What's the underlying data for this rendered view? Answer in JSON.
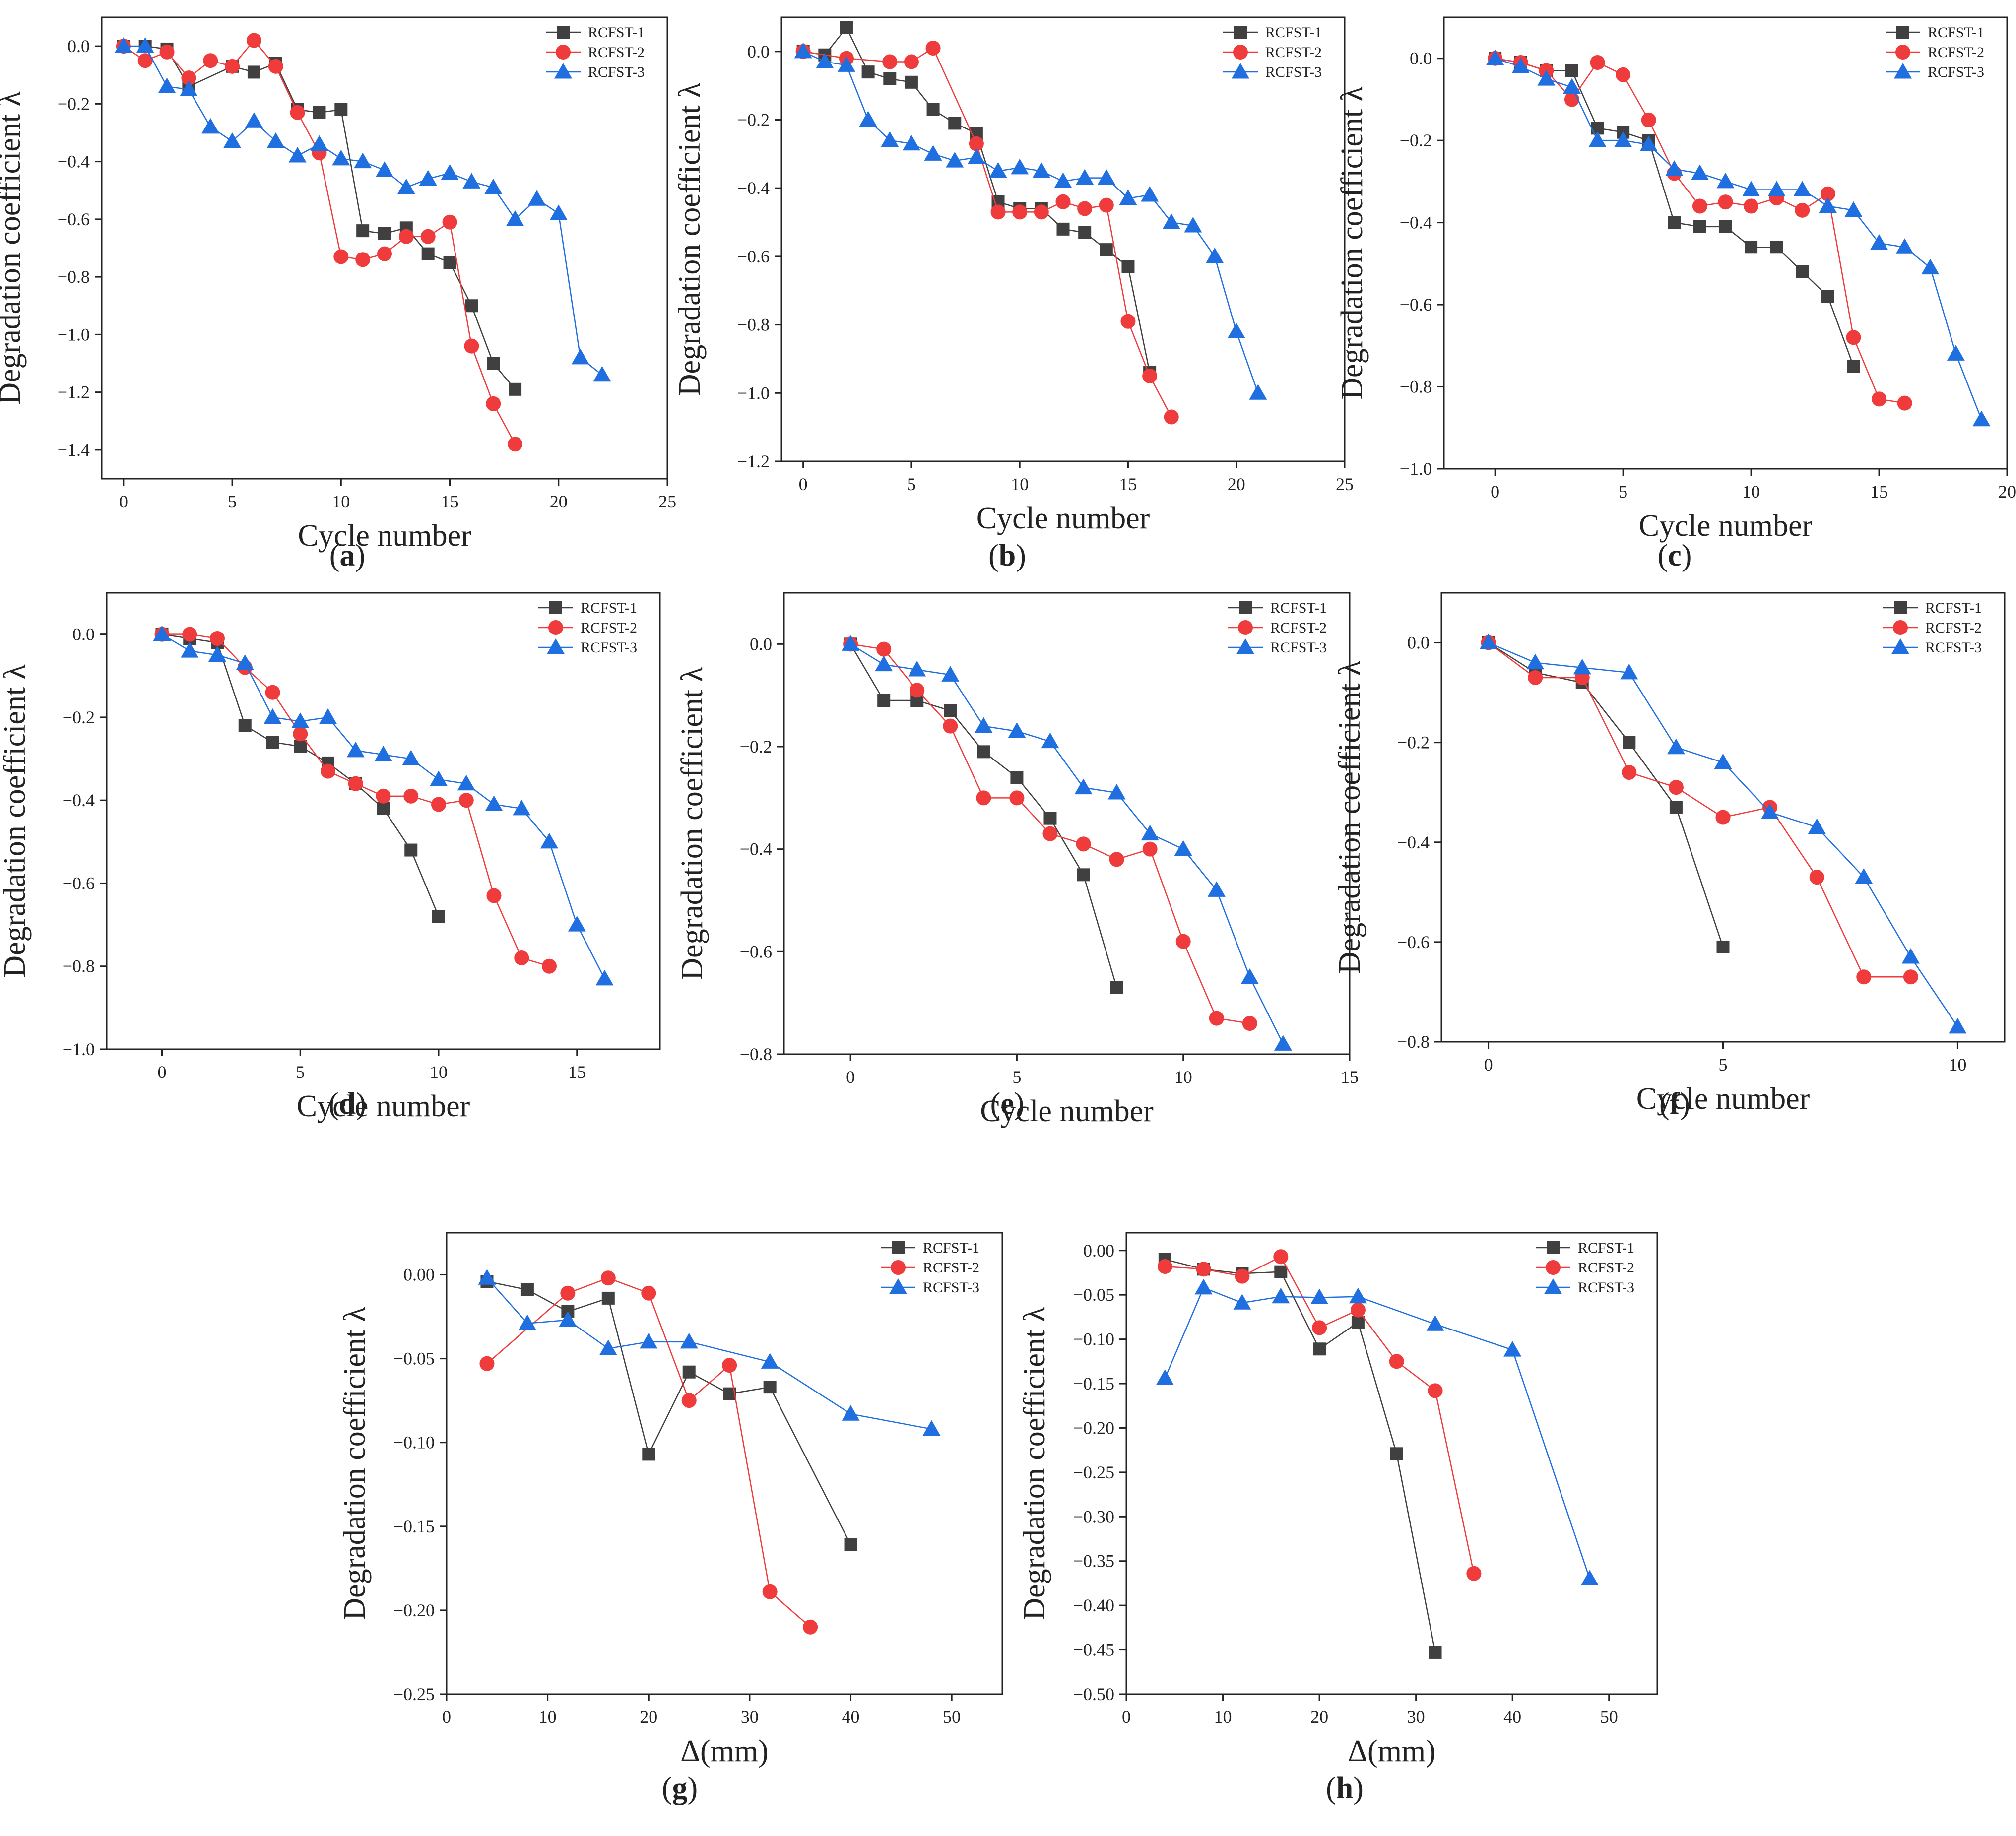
{
  "colors": {
    "RCFST-1": "#404040",
    "RCFST-2": "#ef3b3b",
    "RCFST-3": "#1f6fe0"
  },
  "chart_data": [
    {
      "panel": "(a)",
      "panel_letter": "a",
      "type": "line",
      "xlabel": "Cycle number",
      "ylabel": "Degradation coefficient  λ",
      "xlim": [
        -1,
        25
      ],
      "ylim": [
        -1.5,
        0.1
      ],
      "xticks": [
        0,
        5,
        10,
        15,
        20,
        25
      ],
      "yticks": [
        0.0,
        -0.2,
        -0.4,
        -0.6,
        -0.8,
        -1.0,
        -1.2,
        -1.4
      ],
      "ytick_labels": [
        "0.0",
        "−0.2",
        "−0.4",
        "−0.6",
        "−0.8",
        "−1.0",
        "−1.2",
        "−1.4"
      ],
      "legend": "top-right",
      "series": [
        {
          "name": "RCFST-1",
          "x": [
            0,
            1,
            2,
            3,
            5,
            6,
            7,
            8,
            9,
            10,
            11,
            12,
            13,
            14,
            15,
            16,
            17,
            18
          ],
          "y": [
            0,
            0,
            -0.01,
            -0.14,
            -0.07,
            -0.09,
            -0.06,
            -0.22,
            -0.23,
            -0.22,
            -0.64,
            -0.65,
            -0.63,
            -0.72,
            -0.75,
            -0.9,
            -1.1,
            -1.19
          ]
        },
        {
          "name": "RCFST-2",
          "x": [
            0,
            1,
            2,
            3,
            4,
            5,
            6,
            7,
            8,
            9,
            10,
            11,
            12,
            13,
            14,
            15,
            16,
            17,
            18
          ],
          "y": [
            0,
            -0.05,
            -0.02,
            -0.11,
            -0.05,
            -0.07,
            0.02,
            -0.07,
            -0.23,
            -0.37,
            -0.73,
            -0.74,
            -0.72,
            -0.66,
            -0.66,
            -0.61,
            -1.04,
            -1.24,
            -1.38
          ]
        },
        {
          "name": "RCFST-3",
          "x": [
            0,
            1,
            2,
            3,
            4,
            5,
            6,
            7,
            8,
            9,
            10,
            11,
            12,
            13,
            14,
            15,
            16,
            17,
            18,
            19,
            20,
            21,
            22
          ],
          "y": [
            0,
            0,
            -0.14,
            -0.15,
            -0.28,
            -0.33,
            -0.26,
            -0.33,
            -0.38,
            -0.34,
            -0.39,
            -0.4,
            -0.43,
            -0.49,
            -0.46,
            -0.44,
            -0.47,
            -0.49,
            -0.6,
            -0.53,
            -0.58,
            -1.08,
            -1.14
          ]
        }
      ]
    },
    {
      "panel": "(b)",
      "panel_letter": "b",
      "type": "line",
      "xlabel": "Cycle number",
      "ylabel": "Degradation coefficient  λ",
      "xlim": [
        -1,
        25
      ],
      "ylim": [
        -1.2,
        0.1
      ],
      "xticks": [
        0,
        5,
        10,
        15,
        20,
        25
      ],
      "yticks": [
        0.0,
        -0.2,
        -0.4,
        -0.6,
        -0.8,
        -1.0,
        -1.2
      ],
      "ytick_labels": [
        "0.0",
        "−0.2",
        "−0.4",
        "−0.6",
        "−0.8",
        "−1.0",
        "−1.2"
      ],
      "legend": "top-right",
      "series": [
        {
          "name": "RCFST-1",
          "x": [
            0,
            1,
            2,
            3,
            4,
            5,
            6,
            7,
            8,
            9,
            10,
            11,
            12,
            13,
            14,
            15,
            16
          ],
          "y": [
            0,
            -0.01,
            0.07,
            -0.06,
            -0.08,
            -0.09,
            -0.17,
            -0.21,
            -0.24,
            -0.44,
            -0.46,
            -0.46,
            -0.52,
            -0.53,
            -0.58,
            -0.63,
            -0.94
          ]
        },
        {
          "name": "RCFST-2",
          "x": [
            0,
            2,
            4,
            5,
            6,
            8,
            9,
            10,
            11,
            12,
            13,
            14,
            15,
            16,
            17
          ],
          "y": [
            0,
            -0.02,
            -0.03,
            -0.03,
            0.01,
            -0.27,
            -0.47,
            -0.47,
            -0.47,
            -0.44,
            -0.46,
            -0.45,
            -0.79,
            -0.95,
            -1.07
          ]
        },
        {
          "name": "RCFST-3",
          "x": [
            0,
            1,
            2,
            3,
            4,
            5,
            6,
            7,
            8,
            9,
            10,
            11,
            12,
            13,
            14,
            15,
            16,
            17,
            18,
            19,
            20,
            21
          ],
          "y": [
            0,
            -0.03,
            -0.04,
            -0.2,
            -0.26,
            -0.27,
            -0.3,
            -0.32,
            -0.31,
            -0.35,
            -0.34,
            -0.35,
            -0.38,
            -0.37,
            -0.37,
            -0.43,
            -0.42,
            -0.5,
            -0.51,
            -0.6,
            -0.82,
            -1.0
          ]
        }
      ]
    },
    {
      "panel": "(c)",
      "panel_letter": "c",
      "type": "line",
      "xlabel": "Cycle number",
      "ylabel": "Degradation coefficient  λ",
      "xlim": [
        -2,
        20
      ],
      "ylim": [
        -1.0,
        0.1
      ],
      "xticks": [
        0,
        5,
        10,
        15,
        20
      ],
      "yticks": [
        0.0,
        -0.2,
        -0.4,
        -0.6,
        -0.8,
        -1.0
      ],
      "ytick_labels": [
        "0.0",
        "−0.2",
        "−0.4",
        "−0.6",
        "−0.8",
        "−1.0"
      ],
      "legend": "top-right",
      "series": [
        {
          "name": "RCFST-1",
          "x": [
            0,
            1,
            2,
            3,
            4,
            5,
            6,
            7,
            8,
            9,
            10,
            11,
            12,
            13,
            14
          ],
          "y": [
            0,
            -0.01,
            -0.03,
            -0.03,
            -0.17,
            -0.18,
            -0.2,
            -0.4,
            -0.41,
            -0.41,
            -0.46,
            -0.46,
            -0.52,
            -0.58,
            -0.75
          ]
        },
        {
          "name": "RCFST-2",
          "x": [
            0,
            1,
            2,
            3,
            4,
            5,
            6,
            7,
            8,
            9,
            10,
            11,
            12,
            13,
            14,
            15,
            16
          ],
          "y": [
            0,
            -0.01,
            -0.03,
            -0.1,
            -0.01,
            -0.04,
            -0.15,
            -0.28,
            -0.36,
            -0.35,
            -0.36,
            -0.34,
            -0.37,
            -0.33,
            -0.68,
            -0.83,
            -0.84
          ]
        },
        {
          "name": "RCFST-3",
          "x": [
            0,
            1,
            2,
            3,
            4,
            5,
            6,
            7,
            8,
            9,
            10,
            11,
            12,
            13,
            14,
            15,
            16,
            17,
            18,
            19
          ],
          "y": [
            0,
            -0.02,
            -0.05,
            -0.07,
            -0.2,
            -0.2,
            -0.21,
            -0.27,
            -0.28,
            -0.3,
            -0.32,
            -0.32,
            -0.32,
            -0.36,
            -0.37,
            -0.45,
            -0.46,
            -0.51,
            -0.72,
            -0.88
          ]
        }
      ]
    },
    {
      "panel": "(d)",
      "panel_letter": "d",
      "type": "line",
      "xlabel": "Cycle number",
      "ylabel": "Degradation coefficient  λ",
      "xlim": [
        -2,
        18
      ],
      "ylim": [
        -1.0,
        0.1
      ],
      "xticks": [
        0,
        5,
        10,
        15
      ],
      "yticks": [
        0.0,
        -0.2,
        -0.4,
        -0.6,
        -0.8,
        -1.0
      ],
      "ytick_labels": [
        "0.0",
        "−0.2",
        "−0.4",
        "−0.6",
        "−0.8",
        "−1.0"
      ],
      "legend": "top-right",
      "series": [
        {
          "name": "RCFST-1",
          "x": [
            0,
            1,
            2,
            3,
            4,
            5,
            6,
            7,
            8,
            9,
            10
          ],
          "y": [
            0,
            -0.01,
            -0.02,
            -0.22,
            -0.26,
            -0.27,
            -0.31,
            -0.36,
            -0.42,
            -0.52,
            -0.68
          ]
        },
        {
          "name": "RCFST-2",
          "x": [
            0,
            1,
            2,
            3,
            4,
            5,
            6,
            7,
            8,
            9,
            10,
            11,
            12,
            13,
            14
          ],
          "y": [
            0,
            0,
            -0.01,
            -0.08,
            -0.14,
            -0.24,
            -0.33,
            -0.36,
            -0.39,
            -0.39,
            -0.41,
            -0.4,
            -0.63,
            -0.78,
            -0.8
          ]
        },
        {
          "name": "RCFST-3",
          "x": [
            0,
            1,
            2,
            3,
            4,
            5,
            6,
            7,
            8,
            9,
            10,
            11,
            12,
            13,
            14,
            15,
            16
          ],
          "y": [
            0,
            -0.04,
            -0.05,
            -0.07,
            -0.2,
            -0.21,
            -0.2,
            -0.28,
            -0.29,
            -0.3,
            -0.35,
            -0.36,
            -0.41,
            -0.42,
            -0.5,
            -0.7,
            -0.83
          ]
        }
      ]
    },
    {
      "panel": "(e)",
      "panel_letter": "e",
      "type": "line",
      "xlabel": "Cycle number",
      "ylabel": "Degradation coefficient  λ",
      "xlim": [
        -2,
        15
      ],
      "ylim": [
        -0.8,
        0.1
      ],
      "xticks": [
        0,
        5,
        10,
        15
      ],
      "yticks": [
        0.0,
        -0.2,
        -0.4,
        -0.6,
        -0.8
      ],
      "ytick_labels": [
        "0.0",
        "−0.2",
        "−0.4",
        "−0.6",
        "−0.8"
      ],
      "legend": "top-right",
      "series": [
        {
          "name": "RCFST-1",
          "x": [
            0,
            1,
            2,
            3,
            4,
            5,
            6,
            7,
            8
          ],
          "y": [
            0,
            -0.11,
            -0.11,
            -0.13,
            -0.21,
            -0.26,
            -0.34,
            -0.45,
            -0.67
          ]
        },
        {
          "name": "RCFST-2",
          "x": [
            0,
            1,
            2,
            3,
            4,
            5,
            6,
            7,
            8,
            9,
            10,
            11,
            12
          ],
          "y": [
            0,
            -0.01,
            -0.09,
            -0.16,
            -0.3,
            -0.3,
            -0.37,
            -0.39,
            -0.42,
            -0.4,
            -0.58,
            -0.73,
            -0.74
          ]
        },
        {
          "name": "RCFST-3",
          "x": [
            0,
            1,
            2,
            3,
            4,
            5,
            6,
            7,
            8,
            9,
            10,
            11,
            12,
            13
          ],
          "y": [
            0,
            -0.04,
            -0.05,
            -0.06,
            -0.16,
            -0.17,
            -0.19,
            -0.28,
            -0.29,
            -0.37,
            -0.4,
            -0.48,
            -0.65,
            -0.78
          ]
        }
      ]
    },
    {
      "panel": "(f)",
      "panel_letter": "f",
      "type": "line",
      "xlabel": "Cycle number",
      "ylabel": "Degradation coefficient  λ",
      "xlim": [
        -1,
        11
      ],
      "ylim": [
        -0.8,
        0.1
      ],
      "xticks": [
        0,
        5,
        10
      ],
      "yticks": [
        0.0,
        -0.2,
        -0.4,
        -0.6,
        -0.8
      ],
      "ytick_labels": [
        "0.0",
        "−0.2",
        "−0.4",
        "−0.6",
        "−0.8"
      ],
      "legend": "top-right",
      "series": [
        {
          "name": "RCFST-1",
          "x": [
            0,
            1,
            2,
            3,
            4,
            5
          ],
          "y": [
            0,
            -0.06,
            -0.08,
            -0.2,
            -0.33,
            -0.61
          ]
        },
        {
          "name": "RCFST-2",
          "x": [
            0,
            1,
            2,
            3,
            4,
            5,
            6,
            7,
            8,
            9
          ],
          "y": [
            0,
            -0.07,
            -0.07,
            -0.26,
            -0.29,
            -0.35,
            -0.33,
            -0.47,
            -0.67,
            -0.67
          ]
        },
        {
          "name": "RCFST-3",
          "x": [
            0,
            1,
            2,
            3,
            4,
            5,
            6,
            7,
            8,
            9,
            10
          ],
          "y": [
            0,
            -0.04,
            -0.05,
            -0.06,
            -0.21,
            -0.24,
            -0.34,
            -0.37,
            -0.47,
            -0.63,
            -0.77
          ]
        }
      ]
    },
    {
      "panel": "(g)",
      "panel_letter": "g",
      "type": "line",
      "xlabel": "Δ(mm)",
      "ylabel": "Degradation coefficient  λ",
      "xlim": [
        0,
        55
      ],
      "ylim": [
        -0.25,
        0.025
      ],
      "xticks": [
        0,
        10,
        20,
        30,
        40,
        50
      ],
      "yticks": [
        0.0,
        -0.05,
        -0.1,
        -0.15,
        -0.2,
        -0.25
      ],
      "ytick_labels": [
        "0.00",
        "−0.05",
        "−0.10",
        "−0.15",
        "−0.20",
        "−0.25"
      ],
      "legend": "top-right",
      "series": [
        {
          "name": "RCFST-1",
          "x": [
            4,
            8,
            12,
            16,
            20,
            24,
            28,
            32,
            40
          ],
          "y": [
            -0.004,
            -0.009,
            -0.022,
            -0.014,
            -0.107,
            -0.058,
            -0.071,
            -0.067,
            -0.161
          ]
        },
        {
          "name": "RCFST-2",
          "x": [
            4,
            12,
            16,
            20,
            24,
            28,
            32,
            36
          ],
          "y": [
            -0.053,
            -0.011,
            -0.002,
            -0.011,
            -0.075,
            -0.054,
            -0.189,
            -0.21
          ]
        },
        {
          "name": "RCFST-3",
          "x": [
            4,
            8,
            12,
            16,
            20,
            24,
            32,
            40,
            48
          ],
          "y": [
            -0.002,
            -0.029,
            -0.027,
            -0.044,
            -0.04,
            -0.04,
            -0.052,
            -0.083,
            -0.092
          ]
        }
      ]
    },
    {
      "panel": "(h)",
      "panel_letter": "h",
      "type": "line",
      "xlabel": "Δ(mm)",
      "ylabel": "Degradation coefficient λ",
      "xlim": [
        0,
        55
      ],
      "ylim": [
        -0.5,
        0.02
      ],
      "xticks": [
        0,
        10,
        20,
        30,
        40,
        50
      ],
      "yticks": [
        0.0,
        -0.05,
        -0.1,
        -0.15,
        -0.2,
        -0.25,
        -0.3,
        -0.35,
        -0.4,
        -0.45,
        -0.5
      ],
      "ytick_labels": [
        "0.00",
        "−0.05",
        "−0.10",
        "−0.15",
        "−0.20",
        "−0.25",
        "−0.30",
        "−0.35",
        "−0.40",
        "−0.45",
        "−0.50"
      ],
      "legend": "top-right",
      "series": [
        {
          "name": "RCFST-1",
          "x": [
            4,
            8,
            12,
            16,
            20,
            24,
            28,
            32
          ],
          "y": [
            -0.01,
            -0.021,
            -0.026,
            -0.024,
            -0.111,
            -0.081,
            -0.229,
            -0.453
          ]
        },
        {
          "name": "RCFST-2",
          "x": [
            4,
            8,
            12,
            16,
            20,
            24,
            28,
            32,
            36
          ],
          "y": [
            -0.018,
            -0.021,
            -0.029,
            -0.007,
            -0.087,
            -0.067,
            -0.125,
            -0.158,
            -0.364
          ]
        },
        {
          "name": "RCFST-3",
          "x": [
            4,
            8,
            12,
            16,
            20,
            24,
            32,
            40,
            48
          ],
          "y": [
            -0.144,
            -0.042,
            -0.059,
            -0.052,
            -0.053,
            -0.052,
            -0.083,
            -0.112,
            -0.37
          ]
        }
      ]
    }
  ]
}
